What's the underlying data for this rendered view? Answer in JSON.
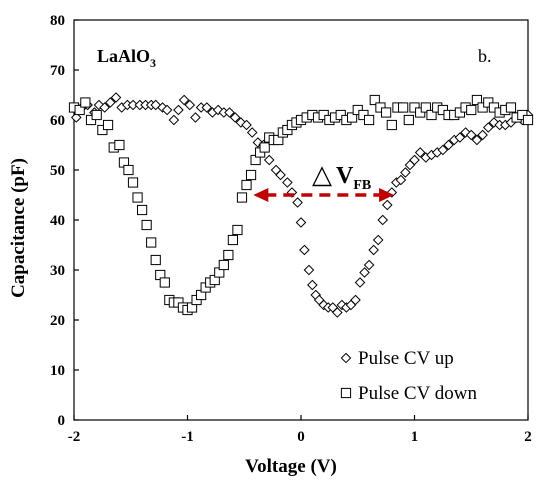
{
  "chart_data": {
    "type": "scatter",
    "title": "",
    "xlabel": "Voltage (V)",
    "ylabel": "Capacitance (pF)",
    "xlim": [
      -2,
      2
    ],
    "ylim": [
      0,
      80
    ],
    "xticks": [
      -2,
      -1,
      0,
      1,
      2
    ],
    "yticks": [
      0,
      10,
      20,
      30,
      40,
      50,
      60,
      70,
      80
    ],
    "xtick_labels": [
      "-2",
      "-1",
      "0",
      "1",
      "2"
    ],
    "ytick_labels": [
      "0",
      "10",
      "20",
      "30",
      "40",
      "50",
      "60",
      "70",
      "80"
    ],
    "grid": false,
    "legend_position": "bottom-right",
    "panel_label": "b.",
    "sample_label": {
      "base": "LaAlO",
      "sub": "3"
    },
    "annotation": {
      "delta": "△",
      "v": "V",
      "sub": "FB",
      "arrow_color": "#c00000",
      "arrow_from": [
        -0.42,
        45
      ],
      "arrow_to": [
        0.82,
        45
      ]
    },
    "series": [
      {
        "name": "Pulse CV up",
        "marker": "diamond",
        "color": "#000000",
        "x": [
          -1.98,
          -1.93,
          -1.88,
          -1.82,
          -1.78,
          -1.73,
          -1.68,
          -1.63,
          -1.58,
          -1.53,
          -1.48,
          -1.42,
          -1.37,
          -1.32,
          -1.28,
          -1.22,
          -1.18,
          -1.12,
          -1.08,
          -1.03,
          -0.98,
          -0.93,
          -0.88,
          -0.83,
          -0.78,
          -0.73,
          -0.68,
          -0.63,
          -0.58,
          -0.53,
          -0.48,
          -0.43,
          -0.38,
          -0.33,
          -0.28,
          -0.22,
          -0.18,
          -0.12,
          -0.08,
          -0.03,
          0.0,
          0.03,
          0.07,
          0.1,
          0.13,
          0.16,
          0.2,
          0.24,
          0.28,
          0.32,
          0.36,
          0.4,
          0.44,
          0.48,
          0.52,
          0.56,
          0.6,
          0.64,
          0.68,
          0.72,
          0.76,
          0.8,
          0.84,
          0.88,
          0.92,
          0.96,
          1.0,
          1.05,
          1.1,
          1.15,
          1.2,
          1.25,
          1.3,
          1.35,
          1.4,
          1.45,
          1.5,
          1.55,
          1.6,
          1.65,
          1.7,
          1.75,
          1.8,
          1.85,
          1.9,
          1.95,
          2.0
        ],
        "y": [
          60.5,
          62.5,
          63,
          61.5,
          63,
          62.5,
          63.5,
          64.5,
          62.5,
          63,
          63,
          63,
          63,
          63,
          63,
          62.5,
          62,
          60,
          62,
          64,
          63,
          60.5,
          62.5,
          62.5,
          61.5,
          62,
          61.5,
          61.5,
          60.5,
          59.5,
          59,
          57.5,
          55.5,
          55,
          52,
          50,
          49,
          47.5,
          45.5,
          43.5,
          39.5,
          34,
          30,
          27,
          25,
          24,
          23,
          22.5,
          22.5,
          21.5,
          23,
          22.5,
          23,
          24,
          27.5,
          29.5,
          31,
          34,
          36,
          40,
          43,
          45.5,
          47.5,
          48,
          49.5,
          51,
          52,
          53.5,
          52.5,
          53,
          53.5,
          54,
          55,
          56,
          56.5,
          57.5,
          57,
          56,
          57,
          58.5,
          59.5,
          59,
          59,
          59.5,
          60.5,
          60,
          61
        ]
      },
      {
        "name": "Pulse CV down",
        "marker": "square",
        "color": "#000000",
        "x": [
          -2.0,
          -1.95,
          -1.9,
          -1.85,
          -1.8,
          -1.75,
          -1.7,
          -1.65,
          -1.6,
          -1.56,
          -1.52,
          -1.48,
          -1.44,
          -1.4,
          -1.36,
          -1.32,
          -1.28,
          -1.24,
          -1.2,
          -1.16,
          -1.12,
          -1.08,
          -1.04,
          -1.0,
          -0.96,
          -0.92,
          -0.88,
          -0.84,
          -0.8,
          -0.76,
          -0.72,
          -0.68,
          -0.64,
          -0.6,
          -0.56,
          -0.52,
          -0.48,
          -0.44,
          -0.4,
          -0.36,
          -0.32,
          -0.28,
          -0.24,
          -0.2,
          -0.16,
          -0.12,
          -0.08,
          -0.04,
          0.0,
          0.05,
          0.1,
          0.15,
          0.2,
          0.25,
          0.3,
          0.35,
          0.4,
          0.45,
          0.5,
          0.55,
          0.6,
          0.65,
          0.7,
          0.75,
          0.8,
          0.85,
          0.9,
          0.95,
          1.0,
          1.05,
          1.1,
          1.15,
          1.2,
          1.25,
          1.3,
          1.35,
          1.4,
          1.45,
          1.5,
          1.55,
          1.6,
          1.65,
          1.7,
          1.75,
          1.8,
          1.85,
          1.9,
          1.95,
          2.0
        ],
        "y": [
          62.5,
          62,
          63.5,
          60,
          61,
          58,
          59,
          54.5,
          55,
          51.5,
          50,
          47.5,
          44.5,
          42,
          39,
          35.5,
          32,
          29,
          27.5,
          24,
          23.5,
          23.5,
          22.5,
          22,
          22.5,
          24,
          25,
          26.5,
          27.5,
          28,
          29.5,
          31,
          33,
          36,
          38,
          44.5,
          47,
          49,
          52,
          53.5,
          54.5,
          56.5,
          56,
          56,
          57.5,
          58,
          59,
          59.5,
          60,
          60.5,
          61,
          60.5,
          61,
          60,
          60.5,
          61,
          60,
          60.5,
          62,
          61,
          60,
          64,
          62.5,
          61.5,
          59,
          62.5,
          62.5,
          60,
          62.5,
          61.5,
          62.5,
          61,
          62.5,
          62,
          61,
          61,
          61.5,
          62.5,
          62,
          64,
          62.5,
          63.5,
          62.5,
          61.5,
          62,
          62.5,
          60.5,
          61,
          60
        ]
      }
    ]
  }
}
